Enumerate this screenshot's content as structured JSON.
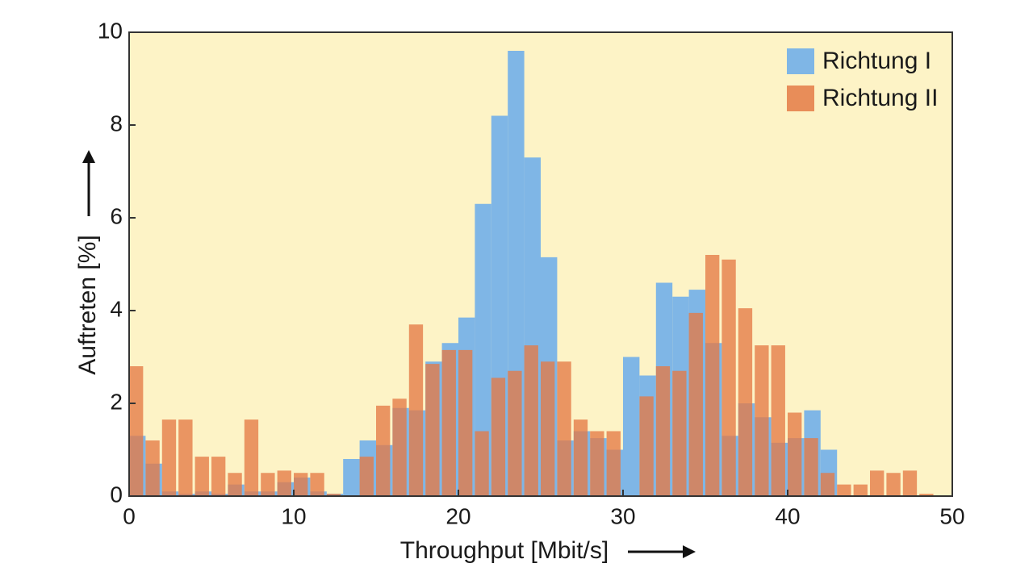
{
  "chart_data": {
    "type": "histogram",
    "xlabel": "Throughput [Mbit/s]",
    "ylabel": "Auftreten [%]",
    "bins": [
      0,
      1,
      2,
      3,
      4,
      5,
      6,
      7,
      8,
      9,
      10,
      11,
      12,
      13,
      14,
      15,
      16,
      17,
      18,
      19,
      20,
      21,
      22,
      23,
      24,
      25,
      26,
      27,
      28,
      29,
      30,
      31,
      32,
      33,
      34,
      35,
      36,
      37,
      38,
      39,
      40,
      41,
      42,
      43,
      44,
      45,
      46,
      47,
      48,
      49,
      50
    ],
    "series": [
      {
        "name": "Richtung I",
        "color": "#7fb6e6",
        "values": [
          1.3,
          0.7,
          0.1,
          0.05,
          0.1,
          0.05,
          0.25,
          0.1,
          0.1,
          0.3,
          0.4,
          0.1,
          0.05,
          0.8,
          1.2,
          1.1,
          1.9,
          1.85,
          2.9,
          3.3,
          3.85,
          6.3,
          8.2,
          9.6,
          7.3,
          5.15,
          1.2,
          1.4,
          1.25,
          1.0,
          3.0,
          2.6,
          4.6,
          4.3,
          4.45,
          3.3,
          1.3,
          2.0,
          1.7,
          1.15,
          1.25,
          1.85,
          1.0,
          0,
          0,
          0,
          0,
          0,
          0,
          0
        ]
      },
      {
        "name": "Richtung II",
        "color": "#e47a45",
        "values": [
          2.8,
          1.2,
          1.65,
          1.65,
          0.85,
          0.85,
          0.5,
          1.65,
          0.5,
          0.55,
          0.5,
          0.5,
          0.05,
          0,
          0.85,
          1.95,
          2.1,
          3.7,
          2.85,
          3.15,
          3.15,
          1.4,
          2.55,
          2.7,
          3.25,
          2.9,
          2.9,
          1.65,
          1.4,
          1.4,
          0,
          2.15,
          2.8,
          2.7,
          3.95,
          5.2,
          5.1,
          4.05,
          3.25,
          3.25,
          1.8,
          1.25,
          0.5,
          0.25,
          0.25,
          0.55,
          0.5,
          0.55,
          0.05,
          0
        ]
      }
    ],
    "xlim": [
      0,
      50
    ],
    "xticks": [
      0,
      10,
      20,
      30,
      40,
      50
    ],
    "ylim": [
      0,
      10
    ],
    "yticks": [
      0,
      2,
      4,
      6,
      8,
      10
    ],
    "legend": "upper right",
    "background": "#fdf3c6"
  }
}
